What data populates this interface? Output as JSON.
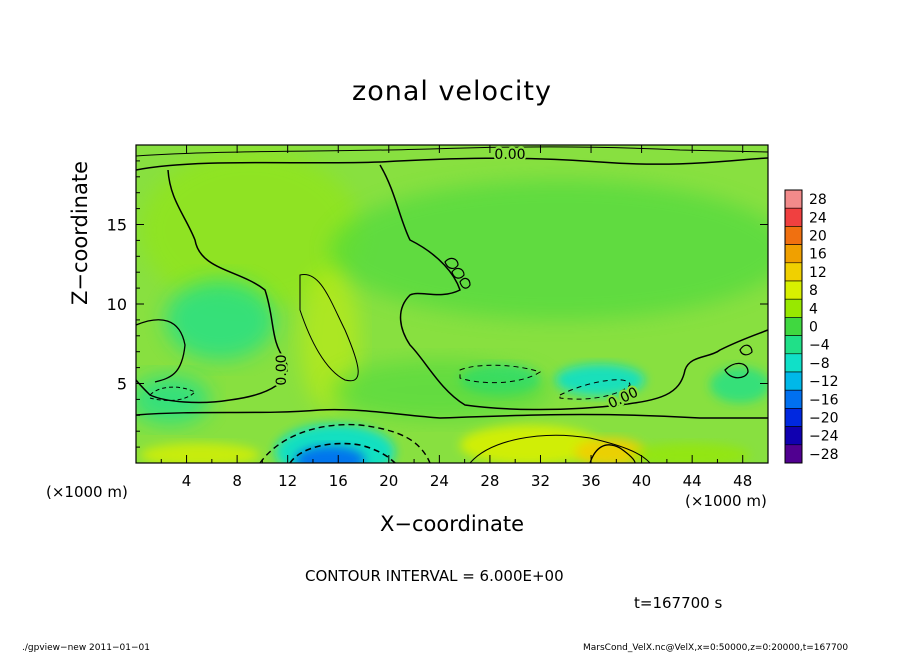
{
  "chart_data": {
    "type": "heatmap",
    "title": "zonal velocity",
    "xlabel": "X−coordinate",
    "ylabel": "Z−coordinate",
    "x_unit_label": "(×1000 m)",
    "x_unit_label_right": "(×1000 m)",
    "xlim": [
      0,
      50
    ],
    "ylim": [
      0,
      20
    ],
    "x_ticks": [
      "4",
      "8",
      "12",
      "16",
      "20",
      "24",
      "28",
      "32",
      "36",
      "40",
      "44",
      "48"
    ],
    "x_tick_values": [
      4,
      8,
      12,
      16,
      20,
      24,
      28,
      32,
      36,
      40,
      44,
      48
    ],
    "y_ticks": [
      "5",
      "10",
      "15"
    ],
    "y_tick_values": [
      5,
      10,
      15
    ],
    "colorbar": {
      "labels": [
        "28",
        "24",
        "20",
        "16",
        "12",
        "8",
        "4",
        "0",
        "−4",
        "−8",
        "−12",
        "−16",
        "−20",
        "−24",
        "−28"
      ],
      "levels": [
        28,
        24,
        20,
        16,
        12,
        8,
        4,
        0,
        -4,
        -8,
        -12,
        -16,
        -20,
        -24,
        -28
      ],
      "colors": [
        "#f28a8a",
        "#f04040",
        "#f07010",
        "#f0a000",
        "#f0d000",
        "#d8f000",
        "#98e800",
        "#40d840",
        "#20e088",
        "#10e0c8",
        "#00b8e8",
        "#0070f0",
        "#0028e0",
        "#1000b0",
        "#500090"
      ]
    },
    "contour_labels": [
      "0.00",
      "0.00",
      "0.00"
    ],
    "contour_interval_text": "CONTOUR INTERVAL = 6.000E+00",
    "time_text": "t=167700 s",
    "grid": false,
    "legend_placement": "right"
  },
  "footer": {
    "left": "./gpview−new   2011−01−01",
    "right": "MarsCond_VelX.nc@VelX,x=0:50000,z=0:20000,t=167700"
  },
  "colors": {
    "background_field": "#88e040",
    "zero_line": "#000000"
  }
}
